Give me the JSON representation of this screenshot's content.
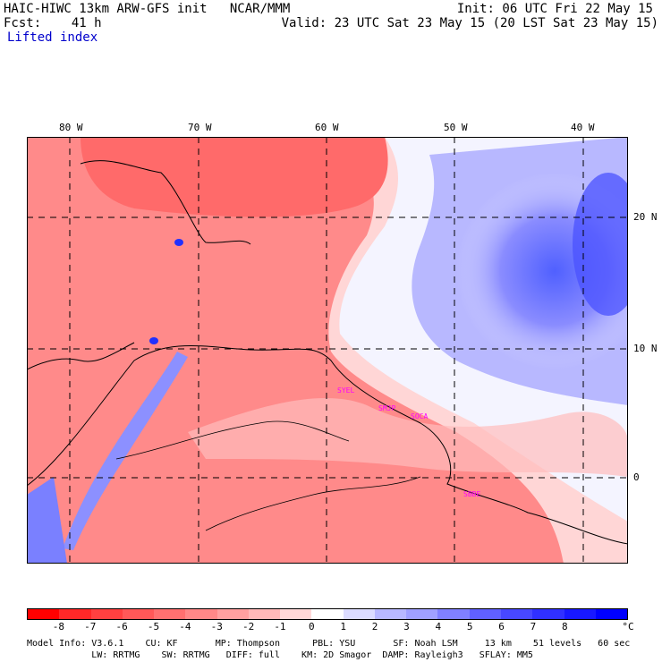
{
  "header": {
    "line1_left": "HAIC-HIWC 13km ARW-GFS init   NCAR/MMM",
    "line1_right": "Init: 06 UTC Fri 22 May 15",
    "line2_left": "Fcst:    41 h",
    "line2_right": "Valid: 23 UTC Sat 23 May 15 (20 LST Sat 23 May 15)",
    "field_name": "Lifted index"
  },
  "map": {
    "lon_labels": [
      "80 W",
      "70 W",
      "60 W",
      "50 W",
      "40 W"
    ],
    "lat_labels": [
      "20 N",
      "10 N",
      "0"
    ],
    "station_labels": [
      "SYEL",
      "SMJP",
      "SOCA",
      "SBBE"
    ]
  },
  "colorbar": {
    "colors": [
      "#ff0000",
      "#ff2828",
      "#ff4040",
      "#ff5858",
      "#ff7070",
      "#ff8888",
      "#ffa0a0",
      "#ffb8b8",
      "#ffd8d8",
      "#ffffff",
      "#dcdcff",
      "#b8b8ff",
      "#a0a0ff",
      "#8080ff",
      "#6060ff",
      "#4848ff",
      "#3030ff",
      "#1818ff",
      "#0000ff"
    ],
    "ticks": [
      "-8",
      "-7",
      "-6",
      "-5",
      "-4",
      "-3",
      "-2",
      "-1",
      "0",
      "1",
      "2",
      "3",
      "4",
      "5",
      "6",
      "7",
      "8"
    ],
    "unit": "°C"
  },
  "footer": {
    "line1": "Model Info: V3.6.1    CU: KF       MP: Thompson      PBL: YSU       SF: Noah LSM     13 km    51 levels   60 sec",
    "line2": "            LW: RRTMG    SW: RRTMG   DIFF: full    KM: 2D Smagor  DAMP: Rayleigh3   SFLAY: MM5"
  }
}
